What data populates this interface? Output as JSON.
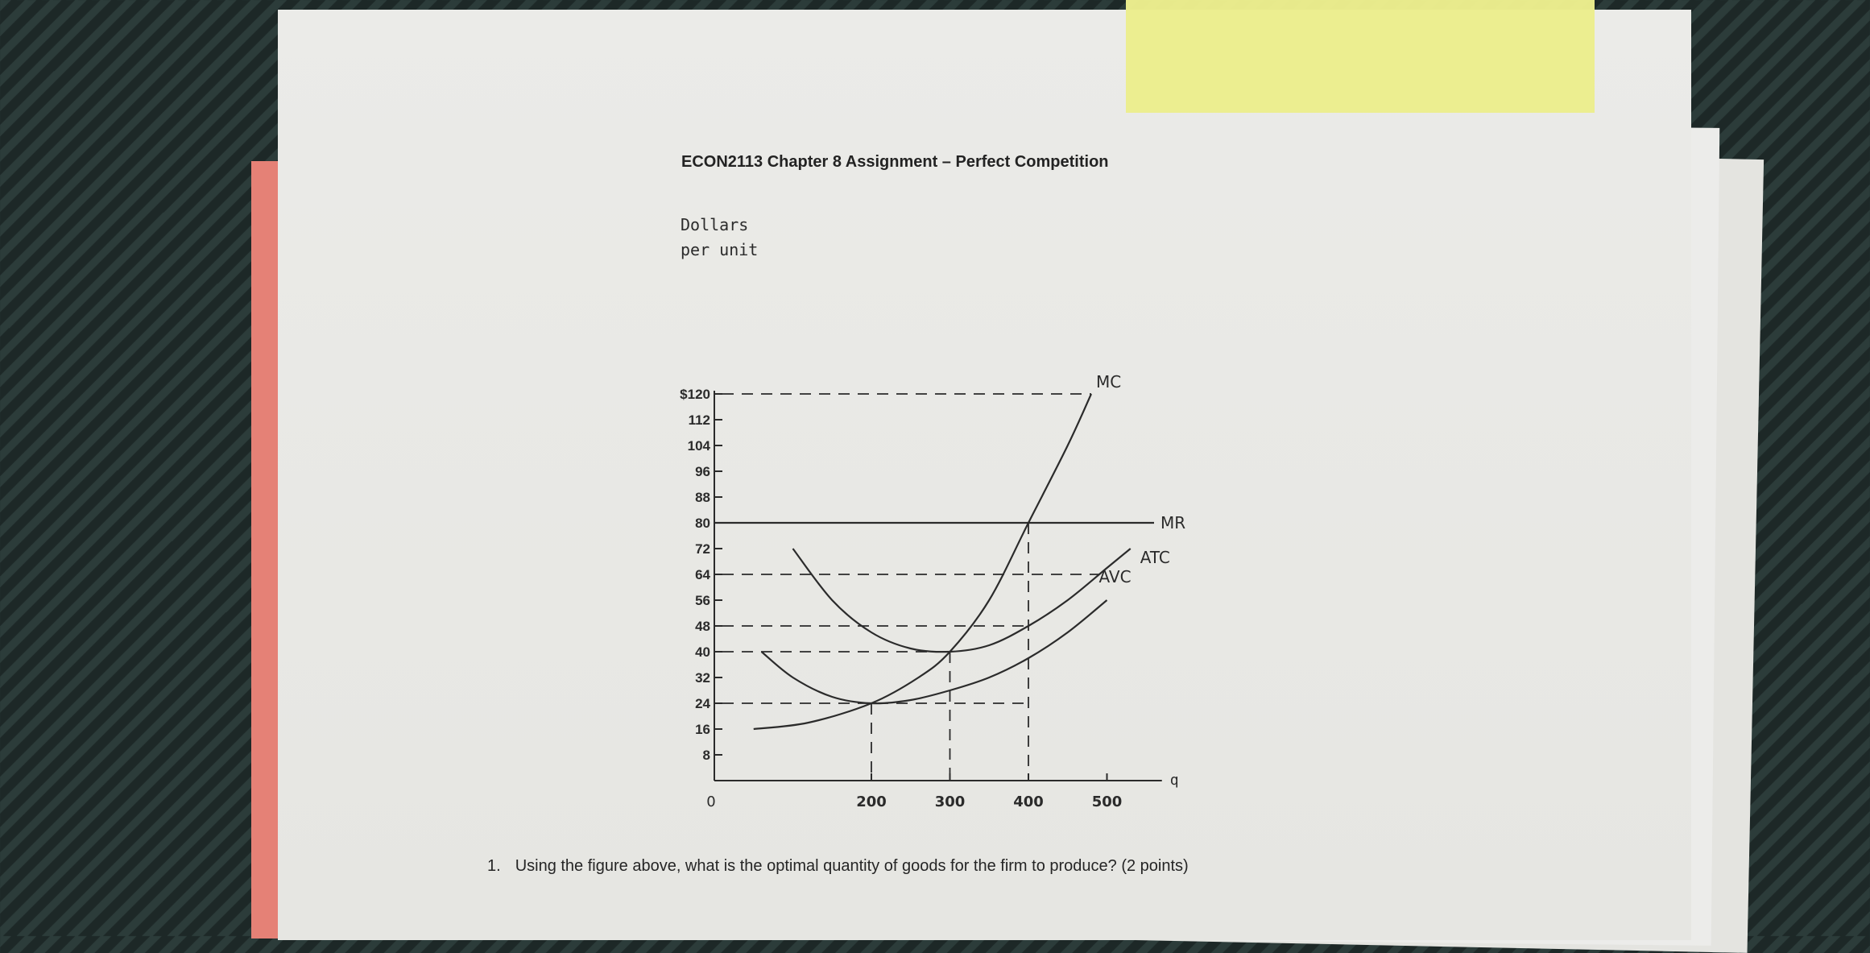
{
  "document": {
    "title": "ECON2113 Chapter 8 Assignment – Perfect Competition",
    "question": {
      "number": "1.",
      "text": "Using the figure above, what is the optimal quantity of goods for the firm to produce? (2 points)"
    }
  },
  "chart_data": {
    "type": "line",
    "ylabel_lines": [
      "Dollars",
      "per unit"
    ],
    "xlabel": "q",
    "origin_label": "0",
    "xlim": [
      0,
      570
    ],
    "ylim": [
      0,
      120
    ],
    "x_ticks": [
      {
        "value": 200,
        "label": "200"
      },
      {
        "value": 300,
        "label": "300"
      },
      {
        "value": 400,
        "label": "400"
      },
      {
        "value": 500,
        "label": "500"
      }
    ],
    "y_ticks": [
      {
        "value": 120,
        "label": "$120"
      },
      {
        "value": 112,
        "label": "112"
      },
      {
        "value": 104,
        "label": "104"
      },
      {
        "value": 96,
        "label": "96"
      },
      {
        "value": 88,
        "label": "88"
      },
      {
        "value": 80,
        "label": "80"
      },
      {
        "value": 72,
        "label": "72"
      },
      {
        "value": 64,
        "label": "64"
      },
      {
        "value": 56,
        "label": "56"
      },
      {
        "value": 48,
        "label": "48"
      },
      {
        "value": 40,
        "label": "40"
      },
      {
        "value": 32,
        "label": "32"
      },
      {
        "value": 24,
        "label": "24"
      },
      {
        "value": 16,
        "label": "16"
      },
      {
        "value": 8,
        "label": "8"
      }
    ],
    "series": [
      {
        "name": "MC",
        "points": [
          [
            50,
            16
          ],
          [
            120,
            18
          ],
          [
            200,
            24
          ],
          [
            260,
            32
          ],
          [
            300,
            40
          ],
          [
            350,
            56
          ],
          [
            400,
            80
          ],
          [
            450,
            104
          ],
          [
            480,
            120
          ]
        ]
      },
      {
        "name": "MR",
        "points": [
          [
            0,
            80
          ],
          [
            560,
            80
          ]
        ]
      },
      {
        "name": "ATC",
        "points": [
          [
            100,
            72
          ],
          [
            150,
            56
          ],
          [
            200,
            46
          ],
          [
            250,
            41
          ],
          [
            300,
            40
          ],
          [
            350,
            42
          ],
          [
            400,
            48
          ],
          [
            450,
            56
          ],
          [
            500,
            66
          ],
          [
            530,
            72
          ]
        ]
      },
      {
        "name": "AVC",
        "points": [
          [
            60,
            40
          ],
          [
            100,
            32
          ],
          [
            150,
            26
          ],
          [
            200,
            24
          ],
          [
            250,
            25
          ],
          [
            300,
            28
          ],
          [
            350,
            32
          ],
          [
            400,
            38
          ],
          [
            450,
            46
          ],
          [
            500,
            56
          ]
        ]
      }
    ],
    "reference_lines": {
      "horizontal": [
        {
          "y": 120,
          "x_to": 480
        },
        {
          "y": 64,
          "x_to": 490
        },
        {
          "y": 48,
          "x_to": 400
        },
        {
          "y": 40,
          "x_to": 300
        },
        {
          "y": 24,
          "x_to": 400
        }
      ],
      "vertical": [
        {
          "x": 200,
          "y_to": 24
        },
        {
          "x": 300,
          "y_to": 40
        },
        {
          "x": 400,
          "y_to": 80
        }
      ]
    }
  }
}
